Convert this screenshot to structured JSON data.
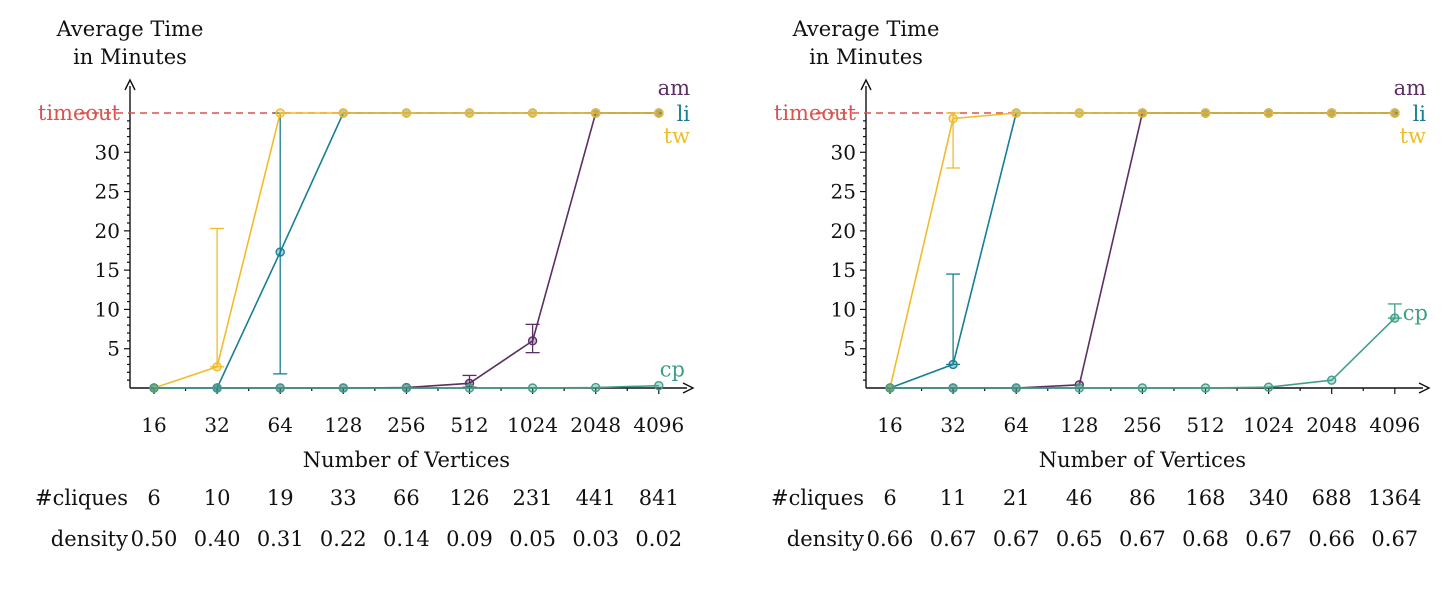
{
  "chart_data": [
    {
      "type": "line",
      "ylabel": "Average Time in Minutes",
      "ylabel_lines": [
        "Average Time",
        "in Minutes"
      ],
      "xlabel": "Number of Vertices",
      "x": [
        16,
        32,
        64,
        128,
        256,
        512,
        1024,
        2048,
        4096
      ],
      "x_labels": [
        "16",
        "32",
        "64",
        "128",
        "256",
        "512",
        "1024",
        "2048",
        "4096"
      ],
      "x_scale": "log2",
      "ylim": [
        0,
        35
      ],
      "y_ticks": [
        5,
        10,
        15,
        20,
        25,
        30
      ],
      "y_tick_labels": [
        "5",
        "10",
        "15",
        "20",
        "25",
        "30"
      ],
      "timeout_value": 35,
      "timeout_label": "timeout",
      "grid": false,
      "series": [
        {
          "name": "am",
          "color": "#5b2f64",
          "values": [
            0,
            0,
            0,
            0,
            0.05,
            0.6,
            6,
            35,
            35
          ],
          "errors": [
            null,
            null,
            null,
            null,
            null,
            [
              0.1,
              1.6
            ],
            [
              4.5,
              8.1
            ],
            null,
            null
          ],
          "legend_position": "top-right"
        },
        {
          "name": "li",
          "color": "#177e94",
          "values": [
            0,
            0,
            17.3,
            35,
            35,
            35,
            35,
            35,
            35
          ],
          "errors": [
            null,
            null,
            [
              1.8,
              35
            ],
            null,
            null,
            null,
            null,
            null,
            null
          ],
          "legend_position": "top-right"
        },
        {
          "name": "tw",
          "color": "#f2bb2a",
          "values": [
            0,
            2.7,
            35,
            35,
            35,
            35,
            35,
            35,
            35
          ],
          "errors": [
            null,
            [
              2.7,
              20.3
            ],
            null,
            null,
            null,
            null,
            null,
            null,
            null
          ],
          "legend_position": "top-right"
        },
        {
          "name": "cp",
          "color": "#3f9e8a",
          "values": [
            0,
            0,
            0,
            0,
            0,
            0,
            0,
            0.05,
            0.3
          ],
          "errors": [
            null,
            null,
            null,
            null,
            null,
            null,
            null,
            null,
            null
          ],
          "legend_position": "bottom-right"
        }
      ],
      "table": [
        {
          "label": "#cliques",
          "values": [
            "6",
            "10",
            "19",
            "33",
            "66",
            "126",
            "231",
            "441",
            "841"
          ]
        },
        {
          "label": "density",
          "values": [
            "0.50",
            "0.40",
            "0.31",
            "0.22",
            "0.14",
            "0.09",
            "0.05",
            "0.03",
            "0.02"
          ]
        }
      ]
    },
    {
      "type": "line",
      "ylabel": "Average Time in Minutes",
      "ylabel_lines": [
        "Average Time",
        "in Minutes"
      ],
      "xlabel": "Number of Vertices",
      "x": [
        16,
        32,
        64,
        128,
        256,
        512,
        1024,
        2048,
        4096
      ],
      "x_labels": [
        "16",
        "32",
        "64",
        "128",
        "256",
        "512",
        "1024",
        "2048",
        "4096"
      ],
      "x_scale": "log2",
      "ylim": [
        0,
        35
      ],
      "y_ticks": [
        5,
        10,
        15,
        20,
        25,
        30
      ],
      "y_tick_labels": [
        "5",
        "10",
        "15",
        "20",
        "25",
        "30"
      ],
      "timeout_value": 35,
      "timeout_label": "timeout",
      "grid": false,
      "series": [
        {
          "name": "am",
          "color": "#5b2f64",
          "values": [
            0,
            0,
            0,
            0.4,
            35,
            35,
            35,
            35,
            35
          ],
          "errors": [
            null,
            null,
            null,
            null,
            null,
            null,
            null,
            null,
            null
          ],
          "legend_position": "top-right"
        },
        {
          "name": "li",
          "color": "#177e94",
          "values": [
            0,
            3,
            35,
            35,
            35,
            35,
            35,
            35,
            35
          ],
          "errors": [
            null,
            [
              3,
              14.5
            ],
            null,
            null,
            null,
            null,
            null,
            null,
            null
          ],
          "legend_position": "top-right"
        },
        {
          "name": "tw",
          "color": "#f2bb2a",
          "values": [
            0,
            34.3,
            35,
            35,
            35,
            35,
            35,
            35,
            35
          ],
          "errors": [
            null,
            [
              28,
              35
            ],
            null,
            null,
            null,
            null,
            null,
            null,
            null
          ],
          "legend_position": "top-right"
        },
        {
          "name": "cp",
          "color": "#3f9e8a",
          "values": [
            0,
            0,
            0,
            0,
            0,
            0,
            0.1,
            1,
            8.9
          ],
          "errors": [
            null,
            null,
            null,
            null,
            null,
            null,
            null,
            null,
            [
              8.9,
              10.7
            ]
          ],
          "legend_position": "right"
        }
      ],
      "table": [
        {
          "label": "#cliques",
          "values": [
            "6",
            "11",
            "21",
            "46",
            "86",
            "168",
            "340",
            "688",
            "1364"
          ]
        },
        {
          "label": "density",
          "values": [
            "0.66",
            "0.67",
            "0.67",
            "0.65",
            "0.67",
            "0.68",
            "0.67",
            "0.66",
            "0.67"
          ]
        }
      ]
    }
  ]
}
